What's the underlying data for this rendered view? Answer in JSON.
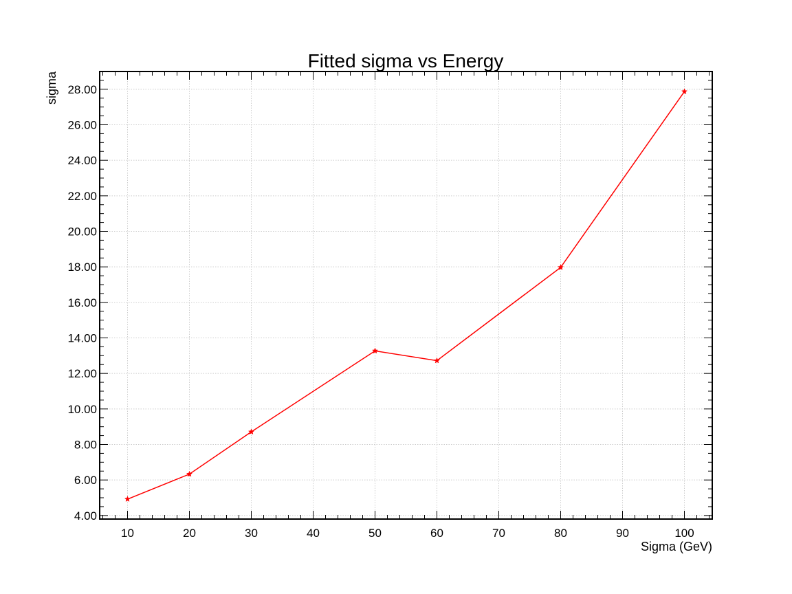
{
  "chart_data": {
    "type": "line",
    "title": "Fitted sigma vs Energy",
    "xlabel": "Sigma (GeV)",
    "ylabel": "sigma",
    "x": [
      10,
      20,
      30,
      50,
      60,
      80,
      100
    ],
    "series": [
      {
        "values": [
          4.92,
          6.33,
          8.71,
          13.27,
          12.72,
          17.97,
          27.87
        ],
        "color": "#ff0000",
        "marker": "star"
      }
    ],
    "xlim": [
      5.5,
      104.5
    ],
    "ylim": [
      3.8,
      29.0
    ],
    "xticks": [
      10,
      20,
      30,
      40,
      50,
      60,
      70,
      80,
      90,
      100
    ],
    "xtick_labels": [
      "10",
      "20",
      "30",
      "40",
      "50",
      "60",
      "70",
      "80",
      "90",
      "100"
    ],
    "yticks": [
      4,
      6,
      8,
      10,
      12,
      14,
      16,
      18,
      20,
      22,
      24,
      26,
      28
    ],
    "ytick_labels": [
      "4.00",
      "6.00",
      "8.00",
      "10.00",
      "12.00",
      "14.00",
      "16.00",
      "18.00",
      "20.00",
      "22.00",
      "24.00",
      "26.00",
      "28.00"
    ],
    "grid": true,
    "grid_color": "#cccccc",
    "axis_color": "#000000"
  }
}
